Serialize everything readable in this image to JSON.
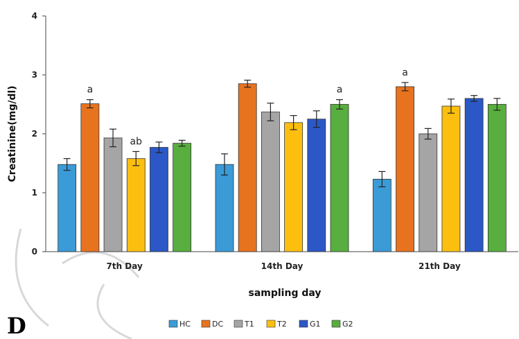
{
  "chart_data": {
    "type": "bar",
    "title": "",
    "xlabel": "sampling day",
    "ylabel": "Creatinine(mg/dl)",
    "ylim": [
      0,
      4
    ],
    "yticks": [
      "0",
      "1",
      "2",
      "3",
      "4"
    ],
    "categories": [
      "7th Day",
      "14th Day",
      "21th Day"
    ],
    "series": [
      {
        "name": "HC",
        "color": "#3b9bd6",
        "values": [
          1.48,
          1.48,
          1.23
        ],
        "errors": [
          0.1,
          0.18,
          0.13
        ]
      },
      {
        "name": "DC",
        "color": "#e8731f",
        "values": [
          2.51,
          2.85,
          2.8
        ],
        "errors": [
          0.07,
          0.06,
          0.07
        ]
      },
      {
        "name": "T1",
        "color": "#a5a5a5",
        "values": [
          1.93,
          2.37,
          2.0
        ],
        "errors": [
          0.15,
          0.15,
          0.09
        ]
      },
      {
        "name": "T2",
        "color": "#fdbf0f",
        "values": [
          1.58,
          2.19,
          2.47
        ],
        "errors": [
          0.12,
          0.12,
          0.12
        ]
      },
      {
        "name": "G1",
        "color": "#2b58c6",
        "values": [
          1.77,
          2.25,
          2.6
        ],
        "errors": [
          0.09,
          0.14,
          0.05
        ]
      },
      {
        "name": "G2",
        "color": "#58ae3e",
        "values": [
          1.84,
          2.5,
          2.5
        ],
        "errors": [
          0.05,
          0.08,
          0.1
        ]
      }
    ],
    "annotations": [
      {
        "text": "a",
        "category": 0,
        "series": 1
      },
      {
        "text": "ab",
        "category": 0,
        "series": 3
      },
      {
        "text": "a",
        "category": 1,
        "series": 5
      },
      {
        "text": "a",
        "category": 2,
        "series": 1
      }
    ],
    "legend_position": "bottom",
    "grid": false
  },
  "panel_label": "D"
}
